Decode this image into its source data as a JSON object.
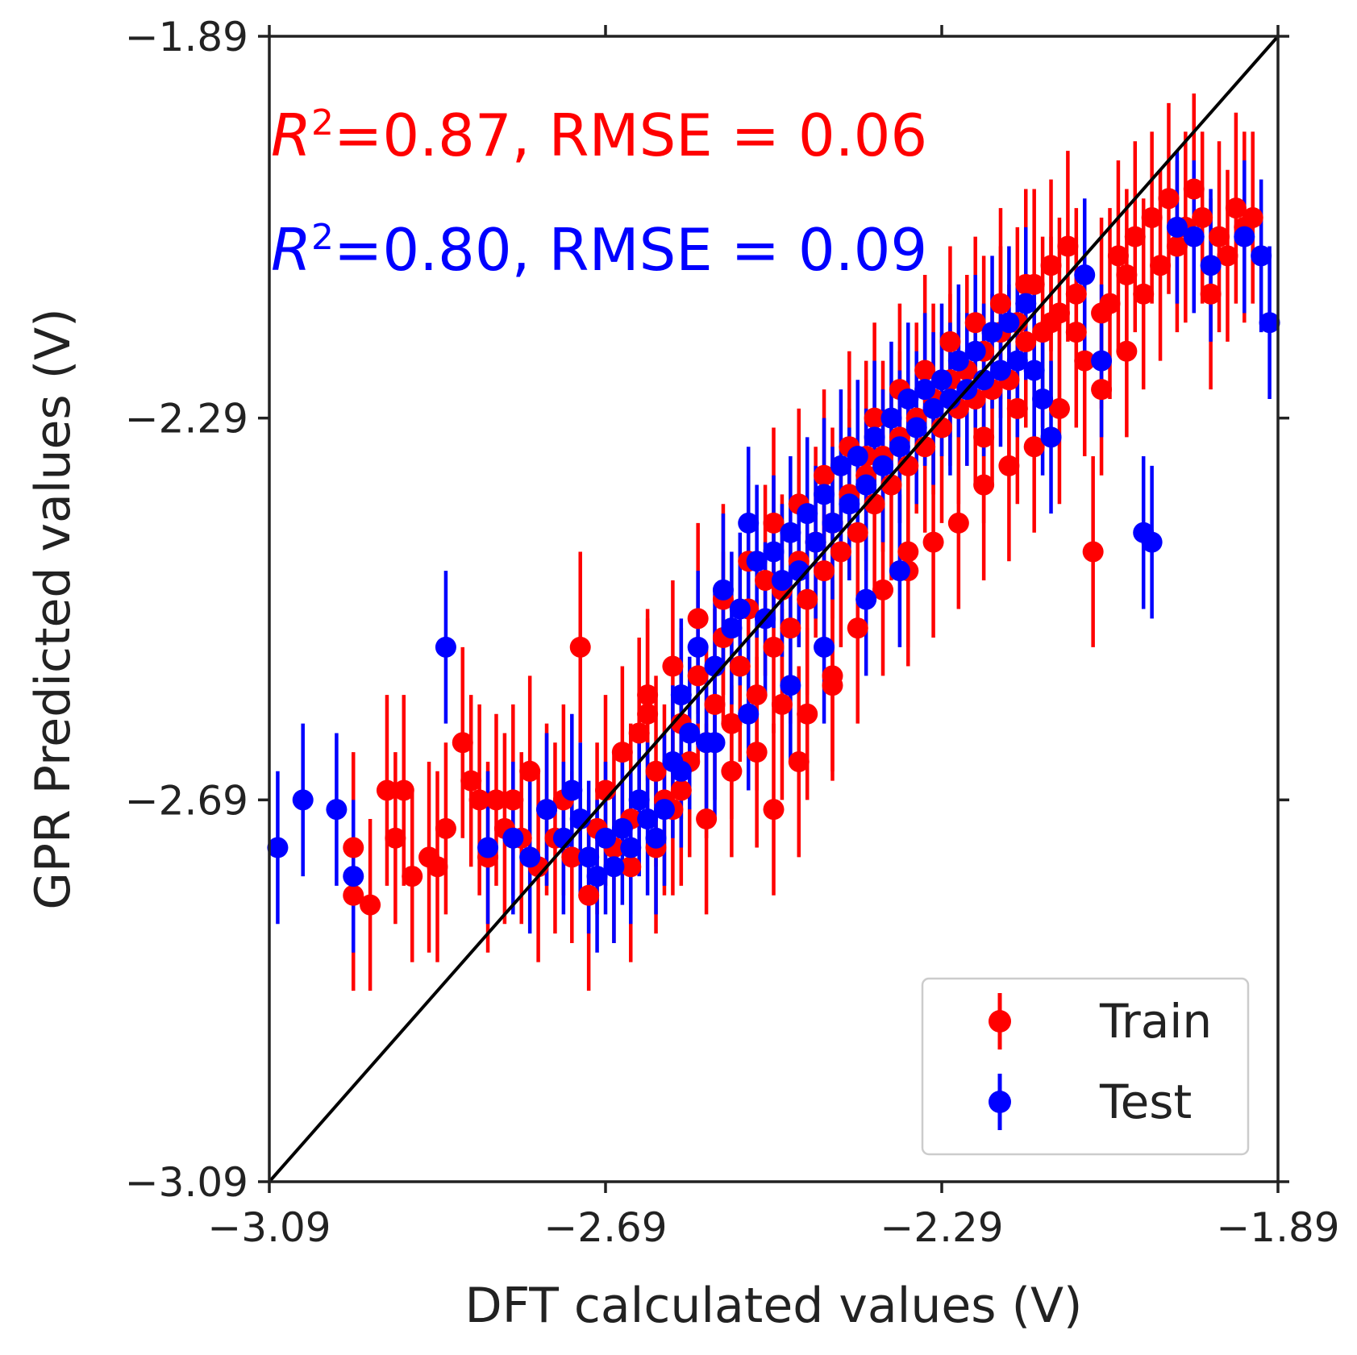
{
  "chart_data": {
    "type": "scatter",
    "xlabel": "DFT calculated values (V)",
    "ylabel": "GPR Predicted values (V)",
    "xlim": [
      -3.09,
      -1.89
    ],
    "ylim": [
      -3.09,
      -1.89
    ],
    "x_ticks": [
      -3.09,
      -2.69,
      -2.29,
      -1.89
    ],
    "y_ticks": [
      -3.09,
      -2.69,
      -2.29,
      -1.89
    ],
    "x_tick_labels": [
      "−3.09",
      "−2.69",
      "−2.29",
      "−1.89"
    ],
    "y_tick_labels": [
      "−3.09",
      "−2.69",
      "−2.29",
      "−1.89"
    ],
    "grid": false,
    "legend_position": "lower-right",
    "reference_line": {
      "x": [
        -3.09,
        -1.89
      ],
      "y": [
        -3.09,
        -1.89
      ],
      "color": "#000000"
    },
    "annotations": [
      {
        "prefix": "R",
        "superscript": "2",
        "text": "=0.87, RMSE = 0.06",
        "color": "#ff0000"
      },
      {
        "prefix": "R",
        "superscript": "2",
        "text": "=0.80, RMSE = 0.09",
        "color": "#0000ff"
      }
    ],
    "series": [
      {
        "name": "Train",
        "color": "#ff0000",
        "points": [
          [
            -2.99,
            -2.74,
            0.1
          ],
          [
            -2.99,
            -2.79,
            0.1
          ],
          [
            -2.97,
            -2.8,
            0.09
          ],
          [
            -2.95,
            -2.68,
            0.1
          ],
          [
            -2.94,
            -2.73,
            0.09
          ],
          [
            -2.93,
            -2.68,
            0.1
          ],
          [
            -2.92,
            -2.77,
            0.09
          ],
          [
            -2.9,
            -2.75,
            0.1
          ],
          [
            -2.89,
            -2.76,
            0.1
          ],
          [
            -2.88,
            -2.72,
            0.09
          ],
          [
            -2.86,
            -2.63,
            0.1
          ],
          [
            -2.85,
            -2.67,
            0.09
          ],
          [
            -2.84,
            -2.69,
            0.1
          ],
          [
            -2.83,
            -2.75,
            0.1
          ],
          [
            -2.82,
            -2.69,
            0.09
          ],
          [
            -2.81,
            -2.72,
            0.1
          ],
          [
            -2.8,
            -2.69,
            0.1
          ],
          [
            -2.79,
            -2.73,
            0.09
          ],
          [
            -2.78,
            -2.66,
            0.1
          ],
          [
            -2.77,
            -2.76,
            0.1
          ],
          [
            -2.76,
            -2.7,
            0.09
          ],
          [
            -2.75,
            -2.73,
            0.1
          ],
          [
            -2.74,
            -2.69,
            0.1
          ],
          [
            -2.73,
            -2.75,
            0.09
          ],
          [
            -2.72,
            -2.53,
            0.1
          ],
          [
            -2.71,
            -2.79,
            0.1
          ],
          [
            -2.7,
            -2.72,
            0.09
          ],
          [
            -2.69,
            -2.68,
            0.1
          ],
          [
            -2.68,
            -2.74,
            0.1
          ],
          [
            -2.67,
            -2.64,
            0.09
          ],
          [
            -2.66,
            -2.71,
            0.1
          ],
          [
            -2.65,
            -2.62,
            0.1
          ],
          [
            -2.64,
            -2.58,
            0.09
          ],
          [
            -2.63,
            -2.66,
            0.1
          ],
          [
            -2.62,
            -2.69,
            0.1
          ],
          [
            -2.61,
            -2.7,
            0.09
          ],
          [
            -2.6,
            -2.61,
            0.1
          ],
          [
            -2.59,
            -2.65,
            0.1
          ],
          [
            -2.58,
            -2.56,
            0.09
          ],
          [
            -2.57,
            -2.63,
            0.1
          ],
          [
            -2.56,
            -2.59,
            0.1
          ],
          [
            -2.55,
            -2.52,
            0.09
          ],
          [
            -2.54,
            -2.61,
            0.1
          ],
          [
            -2.53,
            -2.55,
            0.1
          ],
          [
            -2.52,
            -2.49,
            0.09
          ],
          [
            -2.51,
            -2.58,
            0.1
          ],
          [
            -2.5,
            -2.46,
            0.1
          ],
          [
            -2.49,
            -2.53,
            0.09
          ],
          [
            -2.48,
            -2.47,
            0.1
          ],
          [
            -2.47,
            -2.51,
            0.1
          ],
          [
            -2.46,
            -2.44,
            0.09
          ],
          [
            -2.45,
            -2.48,
            0.1
          ],
          [
            -2.44,
            -2.42,
            0.1
          ],
          [
            -2.43,
            -2.45,
            0.09
          ],
          [
            -2.42,
            -2.4,
            0.1
          ],
          [
            -2.41,
            -2.43,
            0.1
          ],
          [
            -2.4,
            -2.37,
            0.09
          ],
          [
            -2.39,
            -2.41,
            0.1
          ],
          [
            -2.38,
            -2.35,
            0.1
          ],
          [
            -2.37,
            -2.38,
            0.09
          ],
          [
            -2.36,
            -2.33,
            0.1
          ],
          [
            -2.35,
            -2.36,
            0.1
          ],
          [
            -2.34,
            -2.31,
            0.09
          ],
          [
            -2.33,
            -2.34,
            0.1
          ],
          [
            -2.32,
            -2.29,
            0.1
          ],
          [
            -2.31,
            -2.32,
            0.09
          ],
          [
            -2.3,
            -2.27,
            0.1
          ],
          [
            -2.29,
            -2.3,
            0.1
          ],
          [
            -2.28,
            -2.25,
            0.09
          ],
          [
            -2.27,
            -2.28,
            0.1
          ],
          [
            -2.26,
            -2.24,
            0.1
          ],
          [
            -2.25,
            -2.27,
            0.09
          ],
          [
            -2.24,
            -2.22,
            0.1
          ],
          [
            -2.23,
            -2.26,
            0.1
          ],
          [
            -2.22,
            -2.2,
            0.09
          ],
          [
            -2.21,
            -2.25,
            0.1
          ],
          [
            -2.2,
            -2.19,
            0.1
          ],
          [
            -2.19,
            -2.21,
            0.09
          ],
          [
            -2.18,
            -2.15,
            0.1
          ],
          [
            -2.17,
            -2.2,
            0.1
          ],
          [
            -2.16,
            -2.13,
            0.09
          ],
          [
            -2.15,
            -2.18,
            0.1
          ],
          [
            -2.14,
            -2.11,
            0.1
          ],
          [
            -2.13,
            -2.16,
            0.09
          ],
          [
            -2.12,
            -2.23,
            0.1
          ],
          [
            -2.11,
            -2.43,
            0.1
          ],
          [
            -2.1,
            -2.26,
            0.09
          ],
          [
            -2.09,
            -2.17,
            0.1
          ],
          [
            -2.08,
            -2.12,
            0.1
          ],
          [
            -2.07,
            -2.22,
            0.09
          ],
          [
            -2.06,
            -2.1,
            0.1
          ],
          [
            -2.05,
            -2.16,
            0.1
          ],
          [
            -2.04,
            -2.08,
            0.09
          ],
          [
            -2.03,
            -2.13,
            0.1
          ],
          [
            -2.02,
            -2.06,
            0.1
          ],
          [
            -2.01,
            -2.11,
            0.09
          ],
          [
            -2.0,
            -2.09,
            0.1
          ],
          [
            -1.99,
            -2.05,
            0.1
          ],
          [
            -1.98,
            -2.08,
            0.09
          ],
          [
            -1.97,
            -2.16,
            0.1
          ],
          [
            -1.96,
            -2.1,
            0.1
          ],
          [
            -1.95,
            -2.12,
            0.09
          ],
          [
            -1.94,
            -2.07,
            0.1
          ],
          [
            -1.93,
            -2.09,
            0.1
          ],
          [
            -1.92,
            -2.08,
            0.09
          ],
          [
            -2.66,
            -2.76,
            0.1
          ],
          [
            -2.63,
            -2.74,
            0.09
          ],
          [
            -2.6,
            -2.68,
            0.1
          ],
          [
            -2.57,
            -2.71,
            0.1
          ],
          [
            -2.54,
            -2.66,
            0.09
          ],
          [
            -2.51,
            -2.64,
            0.1
          ],
          [
            -2.48,
            -2.59,
            0.1
          ],
          [
            -2.45,
            -2.6,
            0.09
          ],
          [
            -2.42,
            -2.56,
            0.1
          ],
          [
            -2.39,
            -2.51,
            0.1
          ],
          [
            -2.36,
            -2.47,
            0.09
          ],
          [
            -2.33,
            -2.45,
            0.1
          ],
          [
            -2.3,
            -2.42,
            0.1
          ],
          [
            -2.27,
            -2.4,
            0.09
          ],
          [
            -2.24,
            -2.36,
            0.1
          ],
          [
            -2.21,
            -2.34,
            0.1
          ],
          [
            -2.18,
            -2.32,
            0.09
          ],
          [
            -2.15,
            -2.28,
            0.1
          ],
          [
            -2.64,
            -2.6,
            0.1
          ],
          [
            -2.61,
            -2.55,
            0.09
          ],
          [
            -2.58,
            -2.5,
            0.1
          ],
          [
            -2.55,
            -2.48,
            0.1
          ],
          [
            -2.52,
            -2.44,
            0.09
          ],
          [
            -2.49,
            -2.4,
            0.1
          ],
          [
            -2.46,
            -2.38,
            0.1
          ],
          [
            -2.43,
            -2.35,
            0.09
          ],
          [
            -2.4,
            -2.32,
            0.1
          ],
          [
            -2.37,
            -2.29,
            0.1
          ],
          [
            -2.34,
            -2.26,
            0.09
          ],
          [
            -2.31,
            -2.24,
            0.1
          ],
          [
            -2.28,
            -2.21,
            0.1
          ],
          [
            -2.25,
            -2.19,
            0.09
          ],
          [
            -2.22,
            -2.17,
            0.1
          ],
          [
            -2.19,
            -2.15,
            0.1
          ],
          [
            -2.16,
            -2.19,
            0.09
          ],
          [
            -2.13,
            -2.2,
            0.1
          ],
          [
            -2.1,
            -2.18,
            0.1
          ],
          [
            -2.07,
            -2.14,
            0.09
          ],
          [
            -2.42,
            -2.57,
            0.1
          ],
          [
            -2.46,
            -2.65,
            0.1
          ],
          [
            -2.49,
            -2.7,
            0.09
          ],
          [
            -2.38,
            -2.33,
            0.1
          ],
          [
            -2.33,
            -2.43,
            0.1
          ],
          [
            -2.24,
            -2.31,
            0.09
          ],
          [
            -2.2,
            -2.28,
            0.1
          ]
        ]
      },
      {
        "name": "Test",
        "color": "#0000ff",
        "points": [
          [
            -3.08,
            -2.74,
            0.08
          ],
          [
            -3.05,
            -2.69,
            0.08
          ],
          [
            -3.01,
            -2.7,
            0.08
          ],
          [
            -2.99,
            -2.77,
            0.08
          ],
          [
            -2.88,
            -2.53,
            0.08
          ],
          [
            -2.83,
            -2.74,
            0.08
          ],
          [
            -2.8,
            -2.73,
            0.08
          ],
          [
            -2.78,
            -2.75,
            0.08
          ],
          [
            -2.76,
            -2.7,
            0.08
          ],
          [
            -2.74,
            -2.73,
            0.08
          ],
          [
            -2.73,
            -2.68,
            0.08
          ],
          [
            -2.72,
            -2.71,
            0.08
          ],
          [
            -2.71,
            -2.75,
            0.08
          ],
          [
            -2.7,
            -2.77,
            0.08
          ],
          [
            -2.69,
            -2.73,
            0.08
          ],
          [
            -2.68,
            -2.76,
            0.08
          ],
          [
            -2.67,
            -2.72,
            0.08
          ],
          [
            -2.66,
            -2.74,
            0.08
          ],
          [
            -2.65,
            -2.69,
            0.08
          ],
          [
            -2.64,
            -2.71,
            0.08
          ],
          [
            -2.63,
            -2.73,
            0.08
          ],
          [
            -2.62,
            -2.7,
            0.08
          ],
          [
            -2.61,
            -2.65,
            0.08
          ],
          [
            -2.6,
            -2.58,
            0.08
          ],
          [
            -2.59,
            -2.62,
            0.08
          ],
          [
            -2.58,
            -2.53,
            0.08
          ],
          [
            -2.57,
            -2.63,
            0.08
          ],
          [
            -2.56,
            -2.55,
            0.08
          ],
          [
            -2.55,
            -2.47,
            0.08
          ],
          [
            -2.54,
            -2.51,
            0.08
          ],
          [
            -2.53,
            -2.49,
            0.08
          ],
          [
            -2.52,
            -2.4,
            0.08
          ],
          [
            -2.51,
            -2.44,
            0.08
          ],
          [
            -2.5,
            -2.5,
            0.08
          ],
          [
            -2.49,
            -2.43,
            0.08
          ],
          [
            -2.48,
            -2.46,
            0.08
          ],
          [
            -2.47,
            -2.41,
            0.08
          ],
          [
            -2.46,
            -2.45,
            0.08
          ],
          [
            -2.45,
            -2.39,
            0.08
          ],
          [
            -2.44,
            -2.42,
            0.08
          ],
          [
            -2.43,
            -2.37,
            0.08
          ],
          [
            -2.42,
            -2.4,
            0.08
          ],
          [
            -2.41,
            -2.34,
            0.08
          ],
          [
            -2.4,
            -2.38,
            0.08
          ],
          [
            -2.39,
            -2.33,
            0.08
          ],
          [
            -2.38,
            -2.36,
            0.08
          ],
          [
            -2.37,
            -2.31,
            0.08
          ],
          [
            -2.36,
            -2.34,
            0.08
          ],
          [
            -2.35,
            -2.29,
            0.08
          ],
          [
            -2.34,
            -2.32,
            0.08
          ],
          [
            -2.33,
            -2.27,
            0.08
          ],
          [
            -2.32,
            -2.3,
            0.08
          ],
          [
            -2.31,
            -2.26,
            0.08
          ],
          [
            -2.3,
            -2.28,
            0.08
          ],
          [
            -2.29,
            -2.25,
            0.08
          ],
          [
            -2.28,
            -2.27,
            0.08
          ],
          [
            -2.27,
            -2.23,
            0.08
          ],
          [
            -2.26,
            -2.26,
            0.08
          ],
          [
            -2.25,
            -2.22,
            0.08
          ],
          [
            -2.24,
            -2.25,
            0.08
          ],
          [
            -2.23,
            -2.2,
            0.08
          ],
          [
            -2.22,
            -2.24,
            0.08
          ],
          [
            -2.21,
            -2.19,
            0.08
          ],
          [
            -2.2,
            -2.23,
            0.08
          ],
          [
            -2.19,
            -2.17,
            0.08
          ],
          [
            -2.18,
            -2.24,
            0.08
          ],
          [
            -2.17,
            -2.27,
            0.08
          ],
          [
            -2.16,
            -2.31,
            0.08
          ],
          [
            -2.12,
            -2.14,
            0.08
          ],
          [
            -2.1,
            -2.23,
            0.08
          ],
          [
            -2.05,
            -2.41,
            0.08
          ],
          [
            -2.04,
            -2.42,
            0.08
          ],
          [
            -2.01,
            -2.09,
            0.08
          ],
          [
            -1.99,
            -2.1,
            0.08
          ],
          [
            -1.97,
            -2.13,
            0.08
          ],
          [
            -1.93,
            -2.1,
            0.08
          ],
          [
            -1.91,
            -2.12,
            0.08
          ],
          [
            -1.9,
            -2.19,
            0.08
          ],
          [
            -2.52,
            -2.6,
            0.08
          ],
          [
            -2.47,
            -2.57,
            0.08
          ],
          [
            -2.43,
            -2.53,
            0.08
          ],
          [
            -2.38,
            -2.48,
            0.08
          ],
          [
            -2.34,
            -2.45,
            0.08
          ],
          [
            -2.6,
            -2.66,
            0.08
          ],
          [
            -2.56,
            -2.63,
            0.08
          ]
        ]
      }
    ]
  }
}
